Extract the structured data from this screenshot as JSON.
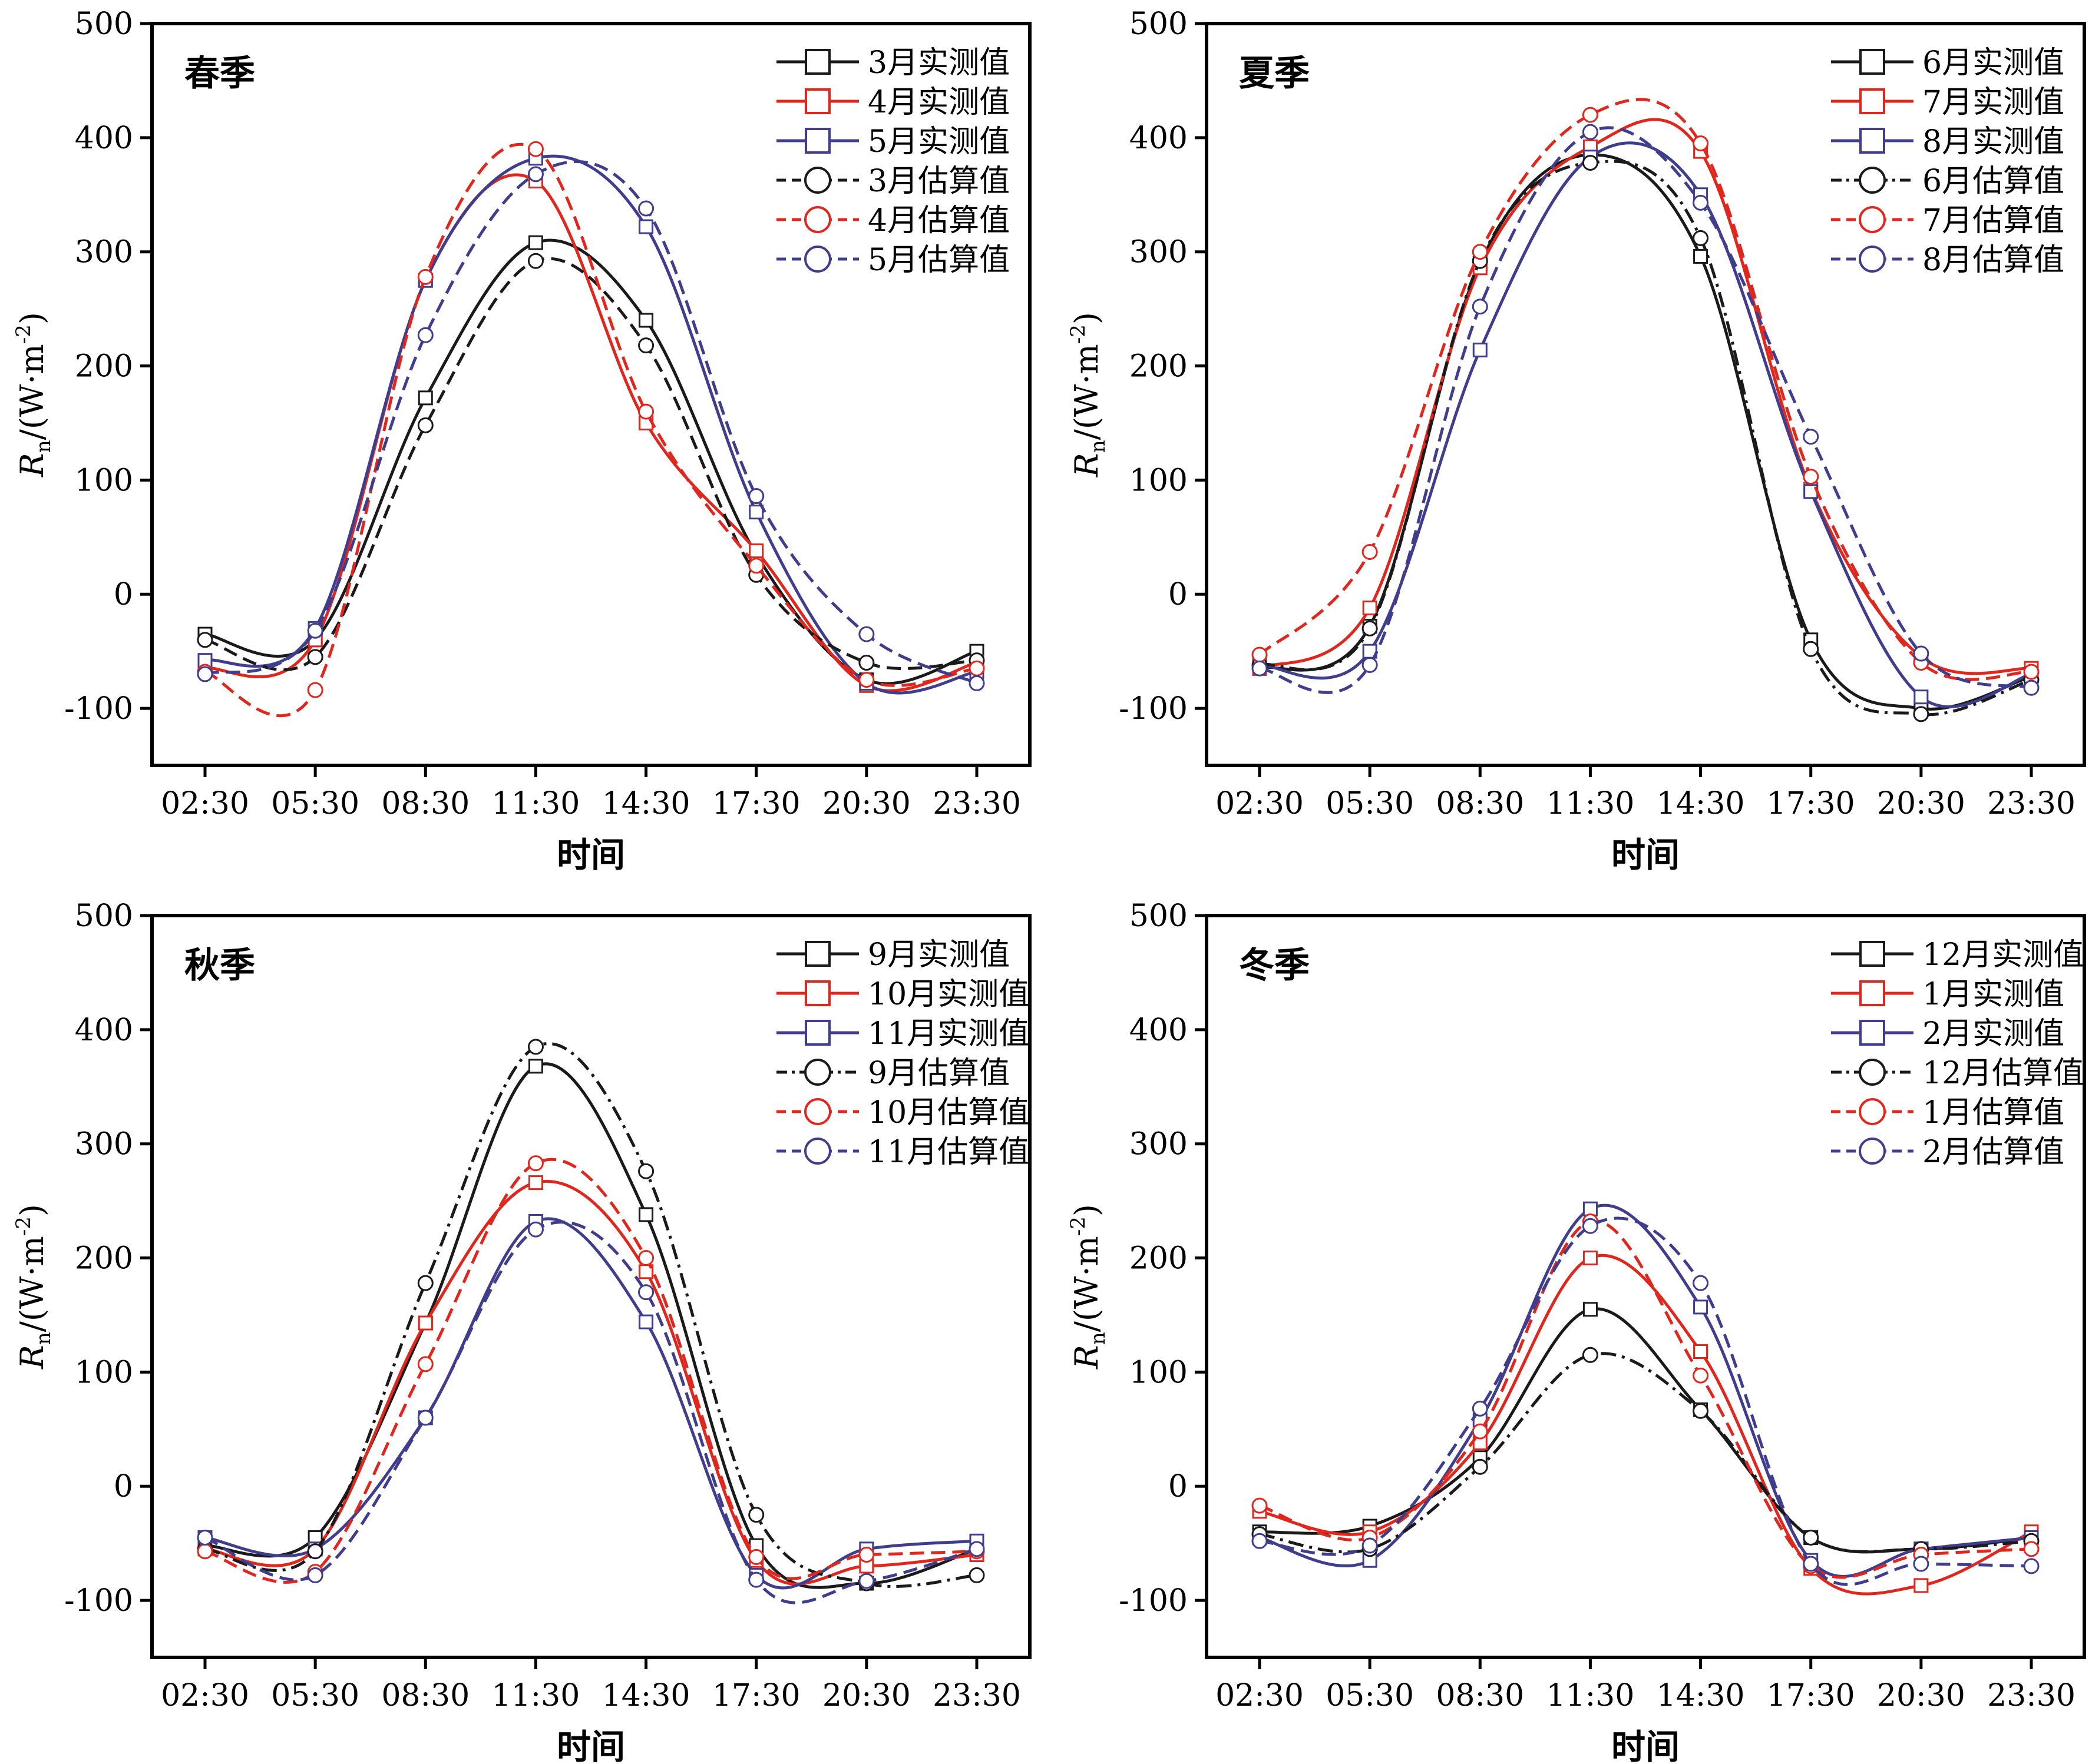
{
  "styles": {
    "colors": {
      "black": "#1a1a1a",
      "red": "#e0271e",
      "blue": "#3f3d8c"
    }
  },
  "chart_data": [
    {
      "type": "line",
      "panel_label": "春季",
      "xlabel": "时间",
      "ylabel_main": "R",
      "ylabel_sub": "n",
      "ylabel_unit": "/(W·m",
      "ylabel_sup": "-2",
      "ylabel_close": ")",
      "x": [
        "02:30",
        "05:30",
        "08:30",
        "11:30",
        "14:30",
        "17:30",
        "20:30",
        "23:30"
      ],
      "ylim": [
        -150,
        500
      ],
      "yticks": [
        -100,
        0,
        100,
        200,
        300,
        400,
        500
      ],
      "legend_position": "top-right",
      "series": [
        {
          "name": "3月实测值",
          "color": "black",
          "dash": "solid",
          "marker": "square",
          "values": [
            -35,
            -40,
            172,
            308,
            240,
            35,
            -75,
            -50
          ]
        },
        {
          "name": "4月实测值",
          "color": "red",
          "dash": "solid",
          "marker": "square",
          "values": [
            -65,
            -40,
            275,
            362,
            150,
            38,
            -80,
            -60
          ]
        },
        {
          "name": "5月实测值",
          "color": "blue",
          "dash": "solid",
          "marker": "square",
          "values": [
            -58,
            -30,
            275,
            382,
            322,
            72,
            -78,
            -68
          ]
        },
        {
          "name": "3月估算值",
          "color": "black",
          "dash": "dashed",
          "marker": "circle",
          "values": [
            -40,
            -55,
            148,
            292,
            218,
            17,
            -60,
            -58
          ]
        },
        {
          "name": "4月估算值",
          "color": "red",
          "dash": "dashed",
          "marker": "circle",
          "values": [
            -68,
            -84,
            278,
            390,
            160,
            25,
            -75,
            -65
          ]
        },
        {
          "name": "5月估算值",
          "color": "blue",
          "dash": "dashed",
          "marker": "circle",
          "values": [
            -70,
            -32,
            227,
            368,
            338,
            86,
            -35,
            -78
          ]
        }
      ]
    },
    {
      "type": "line",
      "panel_label": "夏季",
      "xlabel": "时间",
      "ylabel_main": "R",
      "ylabel_sub": "n",
      "ylabel_unit": "/(W·m",
      "ylabel_sup": "-2",
      "ylabel_close": ")",
      "x": [
        "02:30",
        "05:30",
        "08:30",
        "11:30",
        "14:30",
        "17:30",
        "20:30",
        "23:30"
      ],
      "ylim": [
        -150,
        500
      ],
      "yticks": [
        -100,
        0,
        100,
        200,
        300,
        400,
        500
      ],
      "legend_position": "top-right",
      "series": [
        {
          "name": "6月实测值",
          "color": "black",
          "dash": "solid",
          "marker": "square",
          "values": [
            -65,
            -28,
            290,
            385,
            296,
            -40,
            -100,
            -72
          ]
        },
        {
          "name": "7月实测值",
          "color": "red",
          "dash": "solid",
          "marker": "square",
          "values": [
            -65,
            -12,
            286,
            392,
            388,
            92,
            -55,
            -65
          ]
        },
        {
          "name": "8月实测值",
          "color": "blue",
          "dash": "solid",
          "marker": "square",
          "values": [
            -62,
            -50,
            214,
            383,
            350,
            90,
            -90,
            -70
          ]
        },
        {
          "name": "6月估算值",
          "color": "black",
          "dash": "dashdot",
          "marker": "circle",
          "values": [
            -62,
            -30,
            292,
            378,
            312,
            -48,
            -105,
            -75
          ]
        },
        {
          "name": "7月估算值",
          "color": "red",
          "dash": "dashed",
          "marker": "circle",
          "values": [
            -53,
            37,
            300,
            420,
            395,
            103,
            -60,
            -68
          ]
        },
        {
          "name": "8月估算值",
          "color": "blue",
          "dash": "dashed",
          "marker": "circle",
          "values": [
            -65,
            -62,
            252,
            405,
            343,
            138,
            -52,
            -82
          ]
        }
      ]
    },
    {
      "type": "line",
      "panel_label": "秋季",
      "xlabel": "时间",
      "ylabel_main": "R",
      "ylabel_sub": "n",
      "ylabel_unit": "/(W·m",
      "ylabel_sup": "-2",
      "ylabel_close": ")",
      "x": [
        "02:30",
        "05:30",
        "08:30",
        "11:30",
        "14:30",
        "17:30",
        "20:30",
        "23:30"
      ],
      "ylim": [
        -150,
        500
      ],
      "yticks": [
        -100,
        0,
        100,
        200,
        300,
        400,
        500
      ],
      "legend_position": "top-right",
      "series": [
        {
          "name": "9月实测值",
          "color": "black",
          "dash": "solid",
          "marker": "square",
          "values": [
            -52,
            -45,
            143,
            368,
            238,
            -52,
            -85,
            -55
          ]
        },
        {
          "name": "10月实测值",
          "color": "red",
          "dash": "solid",
          "marker": "square",
          "values": [
            -55,
            -55,
            143,
            266,
            188,
            -65,
            -70,
            -60
          ]
        },
        {
          "name": "11月实测值",
          "color": "blue",
          "dash": "solid",
          "marker": "square",
          "values": [
            -45,
            -55,
            60,
            232,
            144,
            -78,
            -55,
            -48
          ]
        },
        {
          "name": "9月估算值",
          "color": "black",
          "dash": "dashdot",
          "marker": "circle",
          "values": [
            -55,
            -57,
            178,
            385,
            276,
            -25,
            -85,
            -78
          ]
        },
        {
          "name": "10月估算值",
          "color": "red",
          "dash": "dashed",
          "marker": "circle",
          "values": [
            -57,
            -75,
            107,
            283,
            200,
            -62,
            -60,
            -57
          ]
        },
        {
          "name": "11月估算值",
          "color": "blue",
          "dash": "dashed",
          "marker": "circle",
          "values": [
            -45,
            -78,
            60,
            225,
            170,
            -82,
            -83,
            -55
          ]
        }
      ]
    },
    {
      "type": "line",
      "panel_label": "冬季",
      "xlabel": "时间",
      "ylabel_main": "R",
      "ylabel_sub": "n",
      "ylabel_unit": "/(W·m",
      "ylabel_sup": "-2",
      "ylabel_close": ")",
      "x": [
        "02:30",
        "05:30",
        "08:30",
        "11:30",
        "14:30",
        "17:30",
        "20:30",
        "23:30"
      ],
      "ylim": [
        -150,
        500
      ],
      "yticks": [
        -100,
        0,
        100,
        200,
        300,
        400,
        500
      ],
      "legend_position": "top-right",
      "series": [
        {
          "name": "12月实测值",
          "color": "black",
          "dash": "solid",
          "marker": "square",
          "values": [
            -40,
            -35,
            25,
            155,
            67,
            -45,
            -55,
            -45
          ]
        },
        {
          "name": "1月实测值",
          "color": "red",
          "dash": "solid",
          "marker": "square",
          "values": [
            -22,
            -40,
            38,
            200,
            118,
            -72,
            -87,
            -40
          ]
        },
        {
          "name": "2月实测值",
          "color": "blue",
          "dash": "solid",
          "marker": "square",
          "values": [
            -45,
            -65,
            58,
            243,
            157,
            -65,
            -55,
            -45
          ]
        },
        {
          "name": "12月估算值",
          "color": "black",
          "dash": "dashdot",
          "marker": "circle",
          "values": [
            -42,
            -55,
            17,
            115,
            66,
            -45,
            -55,
            -48
          ]
        },
        {
          "name": "1月估算值",
          "color": "red",
          "dash": "dashed",
          "marker": "circle",
          "values": [
            -17,
            -45,
            48,
            232,
            97,
            -70,
            -60,
            -55
          ]
        },
        {
          "name": "2月估算值",
          "color": "blue",
          "dash": "dashed",
          "marker": "circle",
          "values": [
            -48,
            -52,
            68,
            228,
            178,
            -68,
            -68,
            -70
          ]
        }
      ]
    }
  ]
}
